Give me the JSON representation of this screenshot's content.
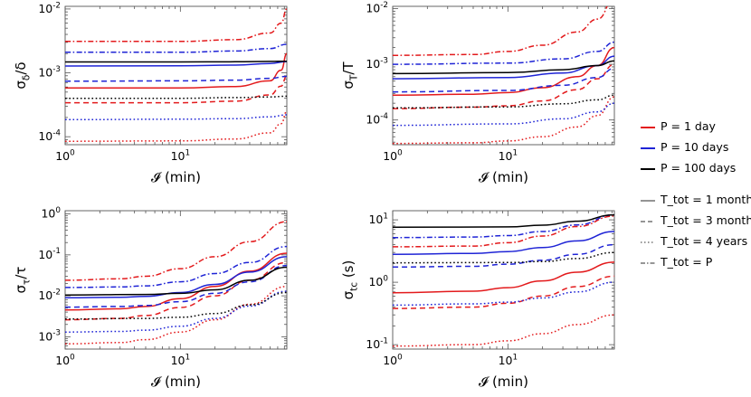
{
  "chart_data": [
    {
      "type": "line",
      "ylabel": "σ_δ/δ",
      "xlabel": "𝓘 (min)",
      "xscale": "log",
      "yscale": "log",
      "xlim": [
        1,
        84
      ],
      "ylim": [
        7.5e-05,
        0.011
      ],
      "xticks": [
        "10^0",
        "10^1"
      ],
      "yticks": [
        "10^-4",
        "10^-3",
        "10^-2"
      ],
      "series": [
        {
          "P": "1 day",
          "Ttot": "1 month",
          "x": [
            1,
            10,
            30,
            60,
            75,
            84
          ],
          "y": [
            0.00058,
            0.00058,
            0.00061,
            0.00075,
            0.0011,
            0.002
          ]
        },
        {
          "P": "1 day",
          "Ttot": "3 months",
          "x": [
            1,
            10,
            30,
            60,
            75,
            84
          ],
          "y": [
            0.00034,
            0.00034,
            0.00036,
            0.00045,
            0.00062,
            0.0009
          ]
        },
        {
          "P": "1 day",
          "Ttot": "4 years",
          "x": [
            1,
            10,
            30,
            60,
            75,
            84
          ],
          "y": [
            8.5e-05,
            8.6e-05,
            9.2e-05,
            0.000115,
            0.00016,
            0.00025
          ]
        },
        {
          "P": "1 day",
          "Ttot": "P",
          "x": [
            1,
            10,
            30,
            60,
            75,
            84
          ],
          "y": [
            0.0031,
            0.0031,
            0.0033,
            0.0042,
            0.006,
            0.01
          ]
        },
        {
          "P": "10 days",
          "Ttot": "1 month",
          "x": [
            1,
            10,
            30,
            60,
            84
          ],
          "y": [
            0.00128,
            0.00129,
            0.00132,
            0.0014,
            0.0015
          ]
        },
        {
          "P": "10 days",
          "Ttot": "3 months",
          "x": [
            1,
            10,
            30,
            60,
            84
          ],
          "y": [
            0.00074,
            0.00075,
            0.00077,
            0.00082,
            0.00088
          ]
        },
        {
          "P": "10 days",
          "Ttot": "4 years",
          "x": [
            1,
            10,
            30,
            60,
            84
          ],
          "y": [
            0.000185,
            0.000188,
            0.000192,
            0.000205,
            0.00022
          ]
        },
        {
          "P": "10 days",
          "Ttot": "P",
          "x": [
            1,
            10,
            30,
            60,
            84
          ],
          "y": [
            0.0021,
            0.0021,
            0.0022,
            0.0024,
            0.0028
          ]
        },
        {
          "P": "100 days",
          "Ttot": "1 month",
          "x": [
            1,
            10,
            30,
            60,
            84
          ],
          "y": [
            0.00148,
            0.00148,
            0.00149,
            0.00151,
            0.00152
          ]
        },
        {
          "P": "100 days",
          "Ttot": "4 years",
          "x": [
            1,
            10,
            30,
            60,
            84
          ],
          "y": [
            0.0004,
            0.0004,
            0.00041,
            0.00042,
            0.00043
          ]
        }
      ]
    },
    {
      "type": "line",
      "ylabel": "σ_T/T",
      "xlabel": "𝓘 (min)",
      "xscale": "log",
      "yscale": "log",
      "xlim": [
        1,
        84
      ],
      "ylim": [
        3.6e-05,
        0.011
      ],
      "xticks": [
        "10^0",
        "10^1"
      ],
      "yticks": [
        "10^-4",
        "10^-3",
        "10^-2"
      ],
      "series": [
        {
          "P": "1 day",
          "Ttot": "1 month",
          "x": [
            1,
            5,
            10,
            20,
            40,
            60,
            84
          ],
          "y": [
            0.00028,
            0.00029,
            0.00031,
            0.00038,
            0.0006,
            0.00095,
            0.002
          ]
        },
        {
          "P": "1 day",
          "Ttot": "3 months",
          "x": [
            1,
            5,
            10,
            20,
            40,
            60,
            84
          ],
          "y": [
            0.00016,
            0.00017,
            0.00018,
            0.00022,
            0.00035,
            0.00055,
            0.001
          ]
        },
        {
          "P": "1 day",
          "Ttot": "4 years",
          "x": [
            1,
            5,
            10,
            20,
            40,
            60,
            84
          ],
          "y": [
            3.8e-05,
            3.9e-05,
            4.2e-05,
            5e-05,
            7.5e-05,
            0.00012,
            0.00026
          ]
        },
        {
          "P": "1 day",
          "Ttot": "P",
          "x": [
            1,
            5,
            10,
            20,
            40,
            60,
            84
          ],
          "y": [
            0.00145,
            0.0015,
            0.0017,
            0.0022,
            0.0038,
            0.0065,
            0.015
          ]
        },
        {
          "P": "10 days",
          "Ttot": "1 month",
          "x": [
            1,
            10,
            30,
            60,
            84
          ],
          "y": [
            0.00055,
            0.00058,
            0.0007,
            0.00095,
            0.0014
          ]
        },
        {
          "P": "10 days",
          "Ttot": "3 months",
          "x": [
            1,
            10,
            30,
            60,
            84
          ],
          "y": [
            0.00032,
            0.00034,
            0.00042,
            0.00058,
            0.00085
          ]
        },
        {
          "P": "10 days",
          "Ttot": "4 years",
          "x": [
            1,
            10,
            30,
            60,
            84
          ],
          "y": [
            8e-05,
            8.5e-05,
            0.000105,
            0.00014,
            0.0002
          ]
        },
        {
          "P": "10 days",
          "Ttot": "P",
          "x": [
            1,
            10,
            30,
            60,
            84
          ],
          "y": [
            0.001,
            0.00105,
            0.00125,
            0.0017,
            0.0025
          ]
        },
        {
          "P": "100 days",
          "Ttot": "1 month",
          "x": [
            1,
            10,
            30,
            60,
            84
          ],
          "y": [
            0.00068,
            0.00071,
            0.0008,
            0.00095,
            0.00115
          ]
        },
        {
          "P": "100 days",
          "Ttot": "4 years",
          "x": [
            1,
            10,
            30,
            60,
            84
          ],
          "y": [
            0.000165,
            0.000172,
            0.000195,
            0.00023,
            0.00028
          ]
        }
      ]
    },
    {
      "type": "line",
      "ylabel": "σ_τ/τ",
      "xlabel": "𝓘 (min)",
      "xscale": "log",
      "yscale": "log",
      "xlim": [
        1,
        84
      ],
      "ylim": [
        0.0005,
        1.2
      ],
      "xticks": [
        "10^0",
        "10^1"
      ],
      "yticks": [
        "10^-3",
        "10^-2",
        "10^-1",
        "10^0"
      ],
      "series": [
        {
          "P": "1 day",
          "Ttot": "1 month",
          "x": [
            1,
            3,
            5,
            10,
            20,
            40,
            84
          ],
          "y": [
            0.0045,
            0.0048,
            0.0055,
            0.0085,
            0.017,
            0.04,
            0.11
          ]
        },
        {
          "P": "1 day",
          "Ttot": "3 months",
          "x": [
            1,
            3,
            5,
            10,
            20,
            40,
            84
          ],
          "y": [
            0.0026,
            0.0028,
            0.0033,
            0.0052,
            0.01,
            0.024,
            0.065
          ]
        },
        {
          "P": "1 day",
          "Ttot": "4 years",
          "x": [
            1,
            3,
            5,
            10,
            20,
            40,
            84
          ],
          "y": [
            0.00067,
            0.00072,
            0.00085,
            0.0013,
            0.0026,
            0.0062,
            0.017
          ]
        },
        {
          "P": "1 day",
          "Ttot": "P",
          "x": [
            1,
            3,
            5,
            10,
            20,
            40,
            84
          ],
          "y": [
            0.024,
            0.026,
            0.03,
            0.046,
            0.09,
            0.21,
            0.65
          ]
        },
        {
          "P": "10 days",
          "Ttot": "1 month",
          "x": [
            1,
            3,
            5,
            10,
            20,
            40,
            84
          ],
          "y": [
            0.009,
            0.0092,
            0.0097,
            0.012,
            0.019,
            0.038,
            0.09
          ]
        },
        {
          "P": "10 days",
          "Ttot": "3 months",
          "x": [
            1,
            3,
            5,
            10,
            20,
            40,
            84
          ],
          "y": [
            0.0053,
            0.0055,
            0.0058,
            0.0072,
            0.0115,
            0.022,
            0.055
          ]
        },
        {
          "P": "10 days",
          "Ttot": "4 years",
          "x": [
            1,
            3,
            5,
            10,
            20,
            40,
            84
          ],
          "y": [
            0.0013,
            0.00135,
            0.00145,
            0.0018,
            0.0028,
            0.0056,
            0.013
          ]
        },
        {
          "P": "10 days",
          "Ttot": "P",
          "x": [
            1,
            3,
            5,
            10,
            20,
            40,
            84
          ],
          "y": [
            0.016,
            0.0165,
            0.0175,
            0.022,
            0.035,
            0.065,
            0.16
          ]
        },
        {
          "P": "100 days",
          "Ttot": "1 month",
          "x": [
            1,
            5,
            10,
            20,
            40,
            84
          ],
          "y": [
            0.0105,
            0.0108,
            0.0115,
            0.014,
            0.024,
            0.05
          ]
        },
        {
          "P": "100 days",
          "Ttot": "4 years",
          "x": [
            1,
            5,
            10,
            20,
            40,
            84
          ],
          "y": [
            0.0027,
            0.0028,
            0.003,
            0.0037,
            0.006,
            0.012
          ]
        }
      ]
    },
    {
      "type": "line",
      "ylabel": "σ_tc (s)",
      "xlabel": "𝓘 (min)",
      "xscale": "log",
      "yscale": "log",
      "xlim": [
        1,
        84
      ],
      "ylim": [
        0.085,
        14
      ],
      "xticks": [
        "10^0",
        "10^1"
      ],
      "yticks": [
        "10^-1",
        "10^0",
        "10^1"
      ],
      "series": [
        {
          "P": "1 day",
          "Ttot": "1 month",
          "x": [
            1,
            5,
            10,
            20,
            40,
            84
          ],
          "y": [
            0.68,
            0.72,
            0.82,
            1.05,
            1.45,
            2.1
          ]
        },
        {
          "P": "1 day",
          "Ttot": "3 months",
          "x": [
            1,
            5,
            10,
            20,
            40,
            84
          ],
          "y": [
            0.38,
            0.4,
            0.46,
            0.6,
            0.85,
            1.25
          ]
        },
        {
          "P": "1 day",
          "Ttot": "4 years",
          "x": [
            1,
            5,
            10,
            20,
            40,
            84
          ],
          "y": [
            0.095,
            0.1,
            0.115,
            0.15,
            0.21,
            0.3
          ]
        },
        {
          "P": "1 day",
          "Ttot": "P",
          "x": [
            1,
            5,
            10,
            20,
            40,
            84
          ],
          "y": [
            3.7,
            3.8,
            4.3,
            5.5,
            7.8,
            11.5
          ]
        },
        {
          "P": "10 days",
          "Ttot": "1 month",
          "x": [
            1,
            5,
            10,
            20,
            40,
            84
          ],
          "y": [
            2.8,
            2.9,
            3.1,
            3.6,
            4.6,
            6.5
          ]
        },
        {
          "P": "10 days",
          "Ttot": "3 months",
          "x": [
            1,
            5,
            10,
            20,
            40,
            84
          ],
          "y": [
            1.75,
            1.8,
            1.95,
            2.25,
            2.8,
            4.0
          ]
        },
        {
          "P": "10 days",
          "Ttot": "4 years",
          "x": [
            1,
            5,
            10,
            20,
            40,
            84
          ],
          "y": [
            0.43,
            0.45,
            0.48,
            0.56,
            0.7,
            1.0
          ]
        },
        {
          "P": "10 days",
          "Ttot": "P",
          "x": [
            1,
            5,
            10,
            20,
            40,
            84
          ],
          "y": [
            5.2,
            5.3,
            5.6,
            6.5,
            8.3,
            12.0
          ]
        },
        {
          "P": "100 days",
          "Ttot": "1 month",
          "x": [
            1,
            10,
            20,
            40,
            84
          ],
          "y": [
            7.6,
            7.7,
            8.2,
            9.5,
            12.0
          ]
        },
        {
          "P": "100 days",
          "Ttot": "4 years",
          "x": [
            1,
            10,
            20,
            40,
            84
          ],
          "y": [
            2.05,
            2.07,
            2.15,
            2.4,
            3.0
          ]
        }
      ]
    }
  ],
  "colors": {
    "1 day": "#e31a1c",
    "10 days": "#1f24d6",
    "100 days": "#000000"
  },
  "linestyles": {
    "1 month": "solid",
    "3 months": "dashed",
    "4 years": "dotted",
    "P": "dashdot"
  },
  "legend": {
    "placement": "right",
    "period_items": [
      {
        "label": "P = 1 day",
        "color": "#e31a1c"
      },
      {
        "label": "P = 10 days",
        "color": "#1f24d6"
      },
      {
        "label": "P = 100 days",
        "color": "#000000"
      }
    ],
    "duration_items": [
      {
        "label": "T_tot = 1 month",
        "style": "solid"
      },
      {
        "label": "T_tot = 3 months",
        "style": "dashed"
      },
      {
        "label": "T_tot = 4 years",
        "style": "dotted"
      },
      {
        "label": "T_tot = P",
        "style": "dashdot"
      }
    ]
  }
}
